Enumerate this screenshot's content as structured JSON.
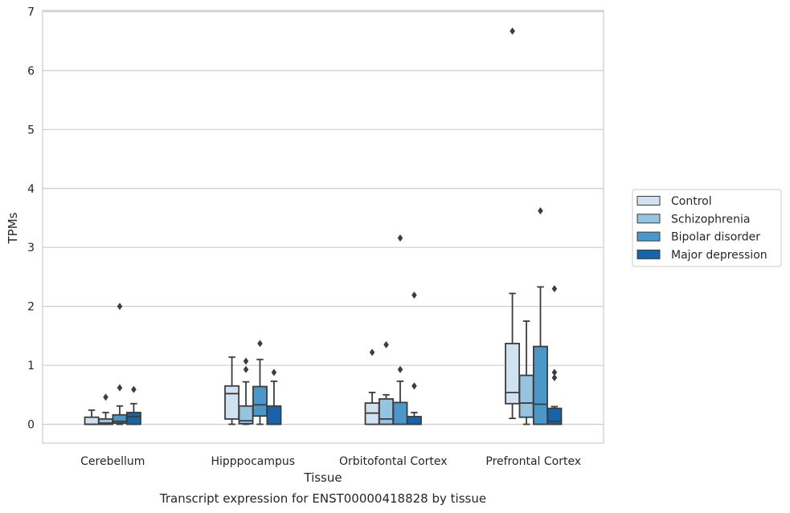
{
  "chart_data": {
    "type": "box",
    "title": "Transcript expression for ENST00000418828 by tissue",
    "xlabel": "Tissue",
    "ylabel": "TPMs",
    "ylim": [
      -0.32,
      7.02
    ],
    "yticks": [
      0,
      1,
      2,
      3,
      4,
      5,
      6,
      7
    ],
    "ytick_labels": [
      "0",
      "1",
      "2",
      "3",
      "4",
      "5",
      "6",
      "7"
    ],
    "grid": true,
    "legend_position": "right",
    "categories": [
      "Cerebellum",
      "Hipppocampus",
      "Orbitofontal Cortex",
      "Prefrontal Cortex"
    ],
    "series": [
      {
        "name": "Control",
        "color": "#d0e1f2",
        "boxes": [
          {
            "whislo": 0,
            "q1": 0,
            "med": 0,
            "q3": 0.12,
            "whishi": 0.24,
            "fliers": []
          },
          {
            "whislo": 0,
            "q1": 0.09,
            "med": 0.52,
            "q3": 0.65,
            "whishi": 1.14,
            "fliers": []
          },
          {
            "whislo": 0,
            "q1": 0,
            "med": 0.19,
            "q3": 0.36,
            "whishi": 0.54,
            "fliers": [
              1.22
            ]
          },
          {
            "whislo": 0.1,
            "q1": 0.35,
            "med": 0.54,
            "q3": 1.37,
            "whishi": 2.22,
            "fliers": [
              6.67
            ]
          }
        ]
      },
      {
        "name": "Schizophrenia",
        "color": "#94c4df",
        "boxes": [
          {
            "whislo": 0,
            "q1": 0,
            "med": 0.02,
            "q3": 0.09,
            "whishi": 0.2,
            "fliers": [
              0.46
            ]
          },
          {
            "whislo": 0,
            "q1": 0.01,
            "med": 0.06,
            "q3": 0.31,
            "whishi": 0.72,
            "fliers": [
              0.93,
              1.07
            ]
          },
          {
            "whislo": 0,
            "q1": 0,
            "med": 0.09,
            "q3": 0.43,
            "whishi": 0.5,
            "fliers": [
              1.35
            ]
          },
          {
            "whislo": 0,
            "q1": 0.12,
            "med": 0.36,
            "q3": 0.83,
            "whishi": 1.75,
            "fliers": []
          }
        ]
      },
      {
        "name": "Bipolar disorder",
        "color": "#4a98c9",
        "boxes": [
          {
            "whislo": 0,
            "q1": 0.02,
            "med": 0.05,
            "q3": 0.16,
            "whishi": 0.31,
            "fliers": [
              0.62,
              2.0
            ]
          },
          {
            "whislo": 0,
            "q1": 0.14,
            "med": 0.33,
            "q3": 0.64,
            "whishi": 1.1,
            "fliers": [
              1.37
            ]
          },
          {
            "whislo": 0,
            "q1": 0,
            "med": 0,
            "q3": 0.37,
            "whishi": 0.73,
            "fliers": [
              0.93,
              3.16
            ]
          },
          {
            "whislo": 0,
            "q1": 0,
            "med": 0.34,
            "q3": 1.32,
            "whishi": 2.33,
            "fliers": [
              3.62
            ]
          }
        ]
      },
      {
        "name": "Major depression",
        "color": "#1764ab",
        "boxes": [
          {
            "whislo": 0,
            "q1": 0,
            "med": 0.13,
            "q3": 0.2,
            "whishi": 0.35,
            "fliers": [
              0.59
            ]
          },
          {
            "whislo": 0,
            "q1": 0,
            "med": 0,
            "q3": 0.31,
            "whishi": 0.73,
            "fliers": [
              0.88
            ]
          },
          {
            "whislo": 0,
            "q1": 0,
            "med": 0,
            "q3": 0.13,
            "whishi": 0.2,
            "fliers": [
              0.65,
              2.19
            ]
          },
          {
            "whislo": 0,
            "q1": 0,
            "med": 0.05,
            "q3": 0.27,
            "whishi": 0.3,
            "fliers": [
              0.79,
              0.88,
              2.3
            ]
          }
        ]
      }
    ]
  }
}
